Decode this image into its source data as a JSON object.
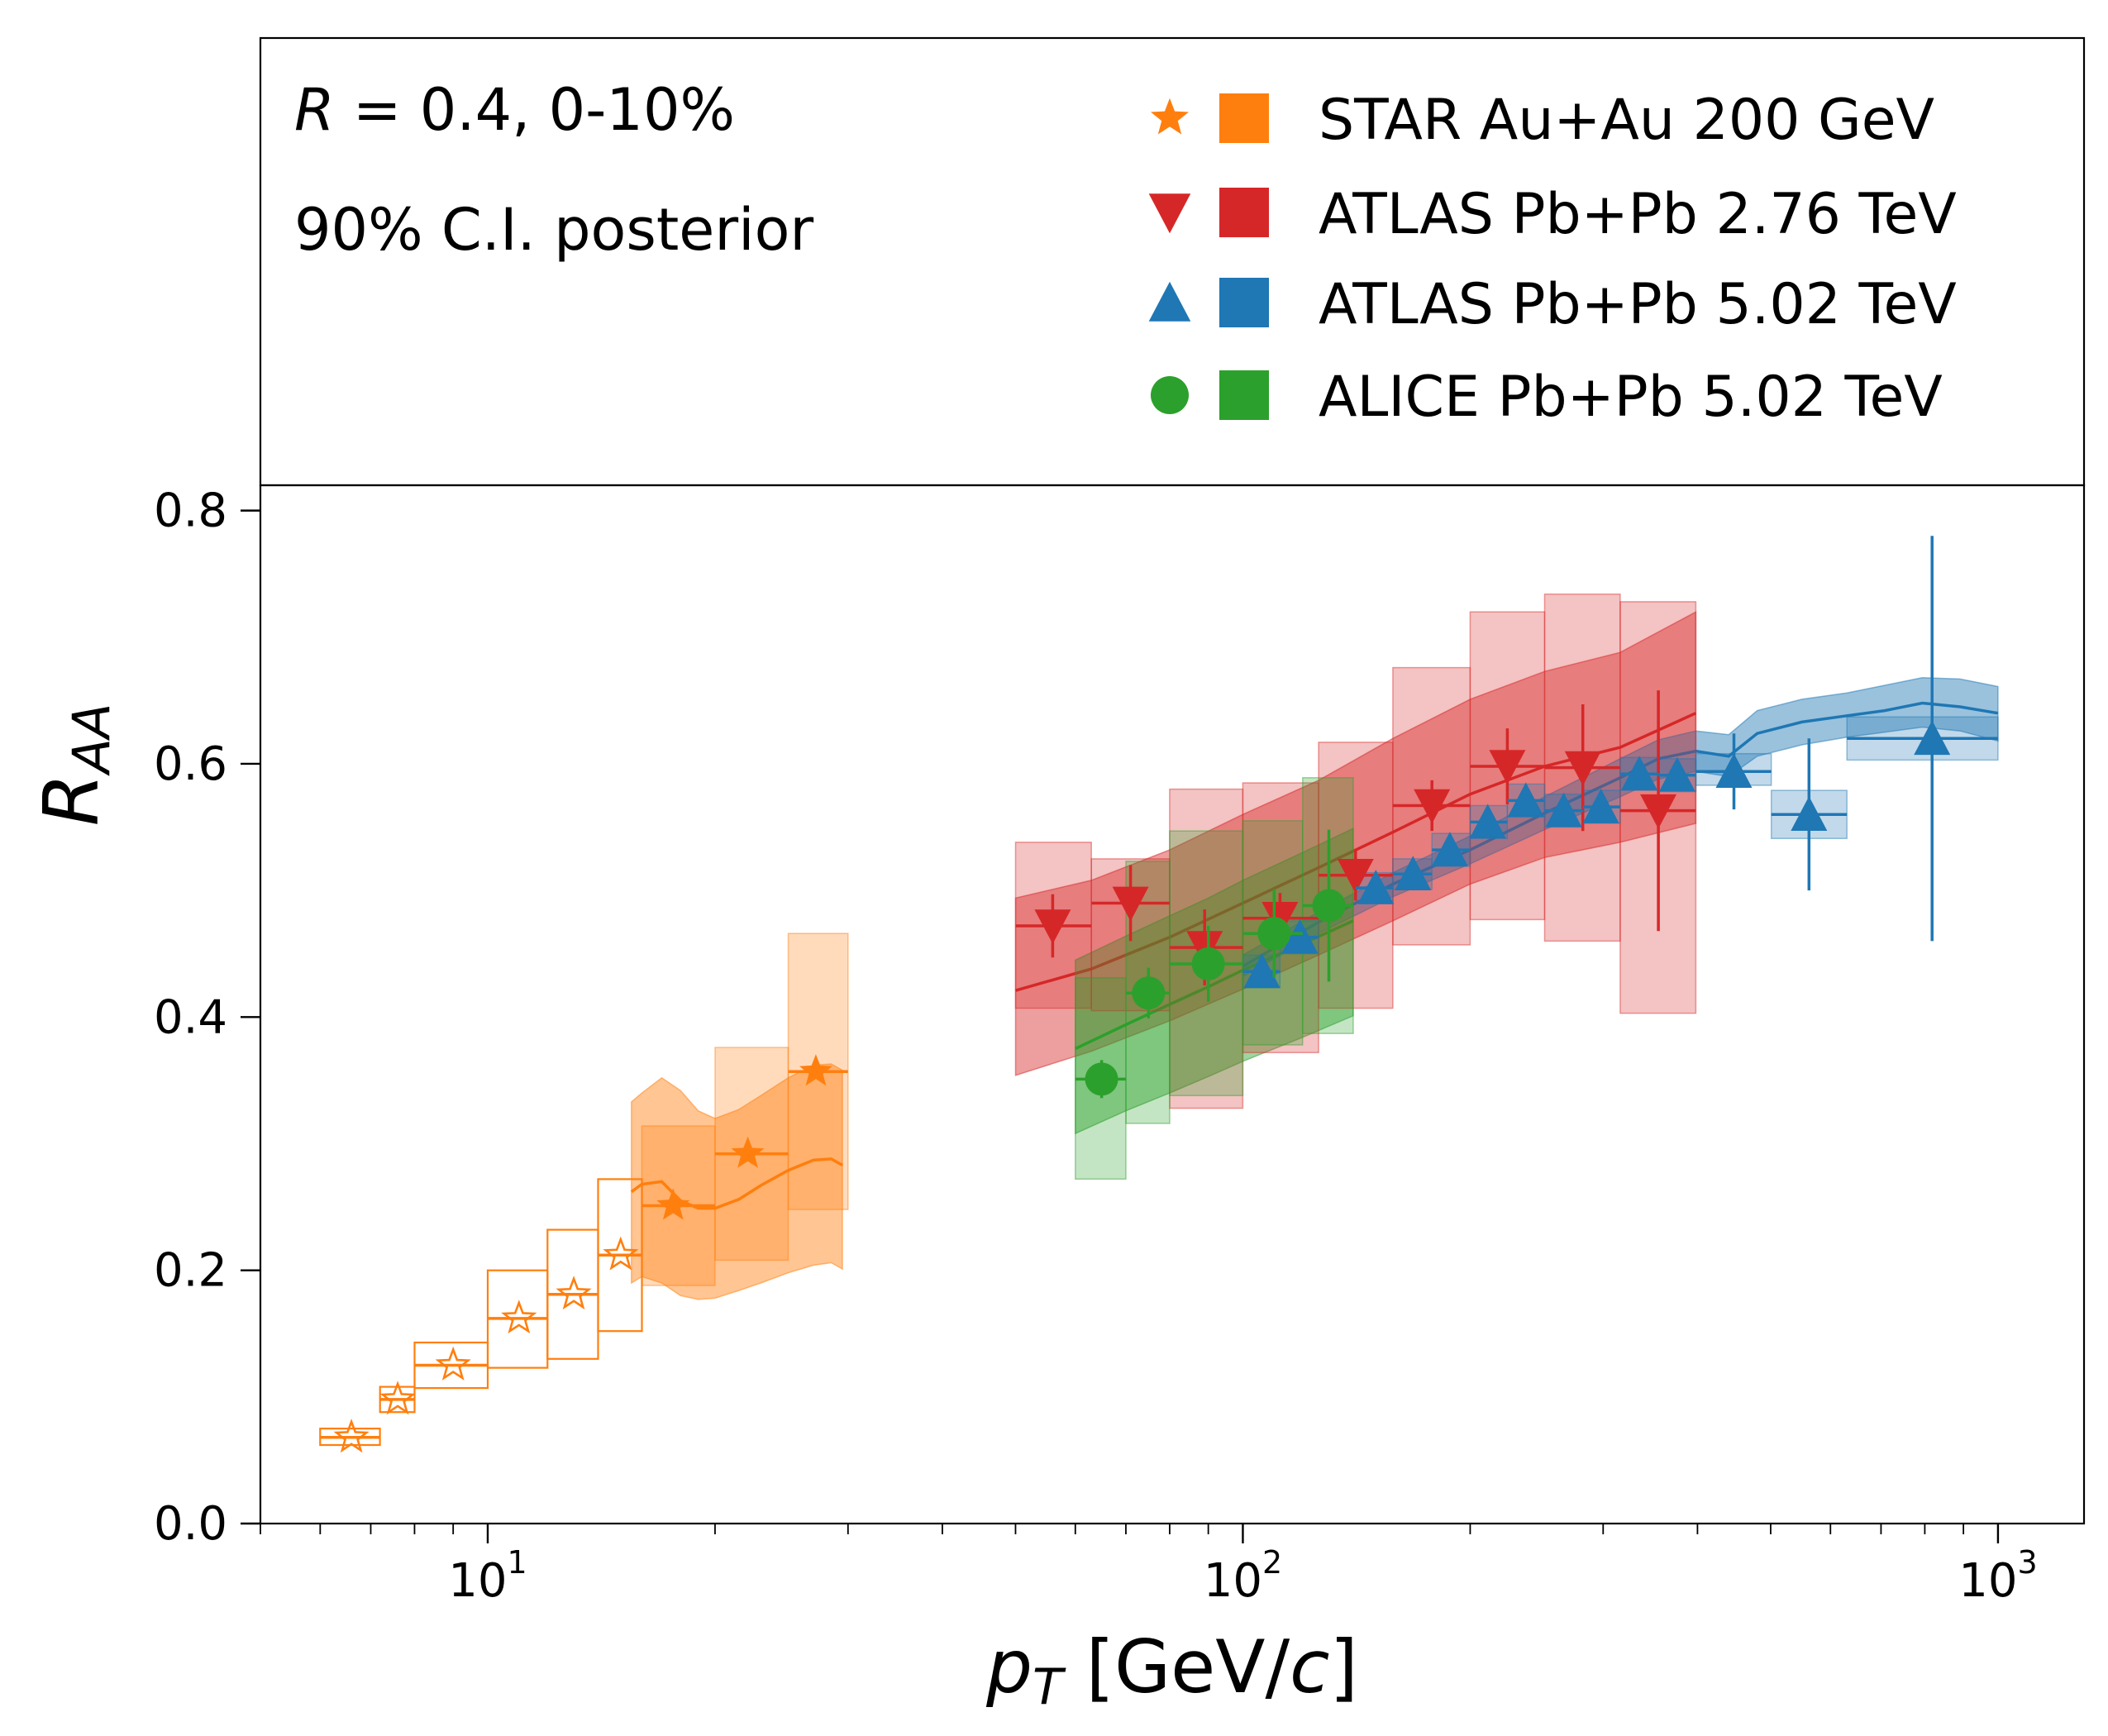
{
  "chart_data": {
    "type": "scatter",
    "title": "",
    "xlabel": "p_T [GeV/c]",
    "xlabel_parts": {
      "main": "p",
      "sub": "T",
      "unit_open": " [GeV/",
      "unit_var": "c",
      "unit_close": "]"
    },
    "ylabel": "R_AA",
    "ylabel_parts": {
      "main": "R",
      "sub": "AA"
    },
    "x_scale": "log",
    "xlim": [
      5,
      1300
    ],
    "ylim": [
      0,
      0.82
    ],
    "y_ticks": [
      {
        "value": 0.0,
        "label": "0.0"
      },
      {
        "value": 0.2,
        "label": "0.2"
      },
      {
        "value": 0.4,
        "label": "0.4"
      },
      {
        "value": 0.6,
        "label": "0.6"
      },
      {
        "value": 0.8,
        "label": "0.8"
      }
    ],
    "x_ticks": [
      {
        "value": 10,
        "base": "10",
        "exp": "1"
      },
      {
        "value": 100,
        "base": "10",
        "exp": "2"
      },
      {
        "value": 1000,
        "base": "10",
        "exp": "3"
      }
    ],
    "annotations": [
      {
        "id": "radius",
        "text_var": "R",
        "text_rest": " = 0.4, 0-10%"
      },
      {
        "id": "ci",
        "text": "90% C.I. posterior"
      }
    ],
    "legend": {
      "position": "top-right",
      "entries": [
        {
          "label": "STAR Au+Au 200 GeV",
          "marker": "star",
          "color": "#ff7f0e"
        },
        {
          "label": "ATLAS Pb+Pb 2.76 TeV",
          "marker": "triangle-down",
          "color": "#d62728"
        },
        {
          "label": "ATLAS Pb+Pb 5.02 TeV",
          "marker": "triangle-up",
          "color": "#1f77b4"
        },
        {
          "label": "ALICE Pb+Pb 5.02 TeV",
          "marker": "circle",
          "color": "#2ca02c"
        }
      ]
    },
    "series": [
      {
        "name": "STAR Au+Au 200 GeV (open)",
        "color": "#ff7f0e",
        "marker": "star-open",
        "sys_style": "outline",
        "points": [
          {
            "x": 6.6,
            "xlo": 6.0,
            "xhi": 7.2,
            "y": 0.068,
            "sys": [
              0.062,
              0.075
            ]
          },
          {
            "x": 7.6,
            "xlo": 7.2,
            "xhi": 8.0,
            "y": 0.098,
            "sys": [
              0.088,
              0.108
            ]
          },
          {
            "x": 9.0,
            "xlo": 8.0,
            "xhi": 10.0,
            "y": 0.125,
            "sys": [
              0.107,
              0.143
            ]
          },
          {
            "x": 11.0,
            "xlo": 10.0,
            "xhi": 12.0,
            "y": 0.162,
            "sys": [
              0.123,
              0.2
            ]
          },
          {
            "x": 13.0,
            "xlo": 12.0,
            "xhi": 14.0,
            "y": 0.181,
            "sys": [
              0.13,
              0.232
            ]
          },
          {
            "x": 15.0,
            "xlo": 14.0,
            "xhi": 16.0,
            "y": 0.212,
            "sys": [
              0.152,
              0.272
            ]
          }
        ]
      },
      {
        "name": "STAR Au+Au 200 GeV (filled)",
        "color": "#ff7f0e",
        "marker": "star",
        "sys_style": "fill",
        "points": [
          {
            "x": 17.6,
            "xlo": 16.0,
            "xhi": 20.0,
            "y": 0.251,
            "sys": [
              0.188,
              0.314
            ]
          },
          {
            "x": 22.1,
            "xlo": 20.0,
            "xhi": 25.0,
            "y": 0.292,
            "sys": [
              0.208,
              0.376
            ]
          },
          {
            "x": 27.2,
            "xlo": 25.0,
            "xhi": 30.0,
            "y": 0.357,
            "sys": [
              0.248,
              0.466
            ]
          }
        ]
      },
      {
        "name": "ATLAS Pb+Pb 2.76 TeV",
        "color": "#d62728",
        "marker": "triangle-down",
        "sys_style": "fill",
        "points": [
          {
            "x": 56,
            "xlo": 50,
            "xhi": 63,
            "y": 0.472,
            "yerr": 0.025,
            "sys": [
              0.407,
              0.538
            ]
          },
          {
            "x": 71,
            "xlo": 63,
            "xhi": 80,
            "y": 0.49,
            "yerr": 0.03,
            "sys": [
              0.405,
              0.525
            ]
          },
          {
            "x": 89,
            "xlo": 80,
            "xhi": 100,
            "y": 0.455,
            "yerr": 0.03,
            "sys": [
              0.328,
              0.58
            ]
          },
          {
            "x": 112,
            "xlo": 100,
            "xhi": 126,
            "y": 0.478,
            "yerr": 0.02,
            "sys": [
              0.372,
              0.585
            ]
          },
          {
            "x": 141,
            "xlo": 126,
            "xhi": 158,
            "y": 0.512,
            "yerr": 0.02,
            "sys": [
              0.407,
              0.617
            ]
          },
          {
            "x": 178,
            "xlo": 158,
            "xhi": 200,
            "y": 0.567,
            "yerr": 0.02,
            "sys": [
              0.457,
              0.676
            ]
          },
          {
            "x": 224,
            "xlo": 200,
            "xhi": 251,
            "y": 0.598,
            "yerr": 0.03,
            "sys": [
              0.477,
              0.72
            ]
          },
          {
            "x": 282,
            "xlo": 251,
            "xhi": 316,
            "y": 0.597,
            "yerr": 0.05,
            "sys": [
              0.46,
              0.734
            ]
          },
          {
            "x": 355,
            "xlo": 316,
            "xhi": 398,
            "y": 0.563,
            "yerr": 0.095,
            "sys": [
              0.403,
              0.728
            ]
          }
        ]
      },
      {
        "name": "ATLAS Pb+Pb 5.02 TeV",
        "color": "#1f77b4",
        "marker": "triangle-up",
        "sys_style": "fill",
        "points": [
          {
            "x": 106,
            "xlo": 100,
            "xhi": 112,
            "y": 0.436,
            "yerr": 0.01,
            "sys": [
              0.423,
              0.449
            ]
          },
          {
            "x": 119,
            "xlo": 112,
            "xhi": 126,
            "y": 0.463,
            "yerr": 0.01,
            "sys": [
              0.45,
              0.476
            ]
          },
          {
            "x": 150,
            "xlo": 141,
            "xhi": 158,
            "y": 0.502,
            "yerr": 0.008,
            "sys": [
              0.49,
              0.514
            ]
          },
          {
            "x": 168,
            "xlo": 158,
            "xhi": 178,
            "y": 0.513,
            "yerr": 0.008,
            "sys": [
              0.501,
              0.525
            ]
          },
          {
            "x": 188,
            "xlo": 178,
            "xhi": 200,
            "y": 0.532,
            "yerr": 0.008,
            "sys": [
              0.519,
              0.545
            ]
          },
          {
            "x": 211,
            "xlo": 200,
            "xhi": 224,
            "y": 0.554,
            "yerr": 0.008,
            "sys": [
              0.541,
              0.567
            ]
          },
          {
            "x": 237,
            "xlo": 224,
            "xhi": 251,
            "y": 0.571,
            "yerr": 0.008,
            "sys": [
              0.558,
              0.584
            ]
          },
          {
            "x": 266,
            "xlo": 251,
            "xhi": 282,
            "y": 0.563,
            "yerr": 0.008,
            "sys": [
              0.55,
              0.576
            ]
          },
          {
            "x": 298,
            "xlo": 282,
            "xhi": 316,
            "y": 0.566,
            "yerr": 0.008,
            "sys": [
              0.553,
              0.579
            ]
          },
          {
            "x": 335,
            "xlo": 316,
            "xhi": 355,
            "y": 0.592,
            "yerr": 0.01,
            "sys": [
              0.579,
              0.605
            ]
          },
          {
            "x": 376,
            "xlo": 355,
            "xhi": 398,
            "y": 0.591,
            "yerr": 0.012,
            "sys": [
              0.578,
              0.604
            ]
          },
          {
            "x": 447,
            "xlo": 398,
            "xhi": 501,
            "y": 0.594,
            "yerr": 0.03,
            "sys": [
              0.583,
              0.608
            ]
          },
          {
            "x": 562,
            "xlo": 501,
            "xhi": 631,
            "y": 0.56,
            "yerr": 0.06,
            "sys": [
              0.541,
              0.579
            ]
          },
          {
            "x": 818,
            "xlo": 631,
            "xhi": 1000,
            "y": 0.62,
            "yerr": 0.16,
            "sys": [
              0.603,
              0.637
            ]
          }
        ]
      },
      {
        "name": "ALICE Pb+Pb 5.02 TeV",
        "color": "#2ca02c",
        "marker": "circle",
        "sys_style": "fill",
        "points": [
          {
            "x": 65,
            "xlo": 60,
            "xhi": 70,
            "y": 0.351,
            "yerr": 0.015,
            "sys": [
              0.272,
              0.431
            ]
          },
          {
            "x": 75,
            "xlo": 70,
            "xhi": 80,
            "y": 0.419,
            "yerr": 0.02,
            "sys": [
              0.316,
              0.523
            ]
          },
          {
            "x": 90,
            "xlo": 80,
            "xhi": 100,
            "y": 0.442,
            "yerr": 0.03,
            "sys": [
              0.338,
              0.547
            ]
          },
          {
            "x": 110,
            "xlo": 100,
            "xhi": 120,
            "y": 0.466,
            "yerr": 0.035,
            "sys": [
              0.378,
              0.555
            ]
          },
          {
            "x": 130,
            "xlo": 120,
            "xhi": 140,
            "y": 0.488,
            "yerr": 0.06,
            "sys": [
              0.387,
              0.589
            ]
          }
        ]
      }
    ],
    "posterior_bands": [
      {
        "name": "STAR posterior",
        "color": "#ff7f0e",
        "points": [
          {
            "x": 15.5,
            "y": 0.262,
            "lo": 0.19,
            "hi": 0.333
          },
          {
            "x": 16.0,
            "y": 0.268,
            "lo": 0.195,
            "hi": 0.34
          },
          {
            "x": 17.0,
            "y": 0.27,
            "lo": 0.19,
            "hi": 0.352
          },
          {
            "x": 18.0,
            "y": 0.255,
            "lo": 0.18,
            "hi": 0.342
          },
          {
            "x": 19.0,
            "y": 0.249,
            "lo": 0.177,
            "hi": 0.326
          },
          {
            "x": 20.0,
            "y": 0.249,
            "lo": 0.178,
            "hi": 0.32
          },
          {
            "x": 21.5,
            "y": 0.256,
            "lo": 0.184,
            "hi": 0.327
          },
          {
            "x": 23.0,
            "y": 0.267,
            "lo": 0.19,
            "hi": 0.338
          },
          {
            "x": 25.0,
            "y": 0.279,
            "lo": 0.198,
            "hi": 0.352
          },
          {
            "x": 27.0,
            "y": 0.287,
            "lo": 0.204,
            "hi": 0.362
          },
          {
            "x": 28.5,
            "y": 0.288,
            "lo": 0.206,
            "hi": 0.363
          },
          {
            "x": 29.5,
            "y": 0.283,
            "lo": 0.201,
            "hi": 0.358
          }
        ]
      },
      {
        "name": "ATLAS 2.76 TeV posterior",
        "color": "#d62728",
        "points": [
          {
            "x": 50,
            "y": 0.421,
            "lo": 0.354,
            "hi": 0.494
          },
          {
            "x": 63,
            "y": 0.438,
            "lo": 0.373,
            "hi": 0.508
          },
          {
            "x": 80,
            "y": 0.463,
            "lo": 0.397,
            "hi": 0.532
          },
          {
            "x": 100,
            "y": 0.49,
            "lo": 0.422,
            "hi": 0.56
          },
          {
            "x": 126,
            "y": 0.518,
            "lo": 0.449,
            "hi": 0.587
          },
          {
            "x": 158,
            "y": 0.546,
            "lo": 0.476,
            "hi": 0.62
          },
          {
            "x": 200,
            "y": 0.576,
            "lo": 0.505,
            "hi": 0.651
          },
          {
            "x": 251,
            "y": 0.598,
            "lo": 0.526,
            "hi": 0.673
          },
          {
            "x": 316,
            "y": 0.613,
            "lo": 0.538,
            "hi": 0.688
          },
          {
            "x": 398,
            "y": 0.64,
            "lo": 0.553,
            "hi": 0.72
          }
        ]
      },
      {
        "name": "ATLAS 5.02 TeV posterior",
        "color": "#1f77b4",
        "points": [
          {
            "x": 100,
            "y": 0.44,
            "lo": 0.432,
            "hi": 0.449
          },
          {
            "x": 126,
            "y": 0.475,
            "lo": 0.466,
            "hi": 0.483
          },
          {
            "x": 158,
            "y": 0.505,
            "lo": 0.495,
            "hi": 0.514
          },
          {
            "x": 200,
            "y": 0.532,
            "lo": 0.521,
            "hi": 0.543
          },
          {
            "x": 251,
            "y": 0.561,
            "lo": 0.548,
            "hi": 0.574
          },
          {
            "x": 316,
            "y": 0.589,
            "lo": 0.574,
            "hi": 0.604
          },
          {
            "x": 355,
            "y": 0.604,
            "lo": 0.588,
            "hi": 0.619
          },
          {
            "x": 398,
            "y": 0.61,
            "lo": 0.594,
            "hi": 0.626
          },
          {
            "x": 440,
            "y": 0.606,
            "lo": 0.59,
            "hi": 0.623
          },
          {
            "x": 480,
            "y": 0.624,
            "lo": 0.606,
            "hi": 0.642
          },
          {
            "x": 550,
            "y": 0.633,
            "lo": 0.615,
            "hi": 0.651
          },
          {
            "x": 631,
            "y": 0.638,
            "lo": 0.621,
            "hi": 0.656
          },
          {
            "x": 708,
            "y": 0.642,
            "lo": 0.625,
            "hi": 0.662
          },
          {
            "x": 794,
            "y": 0.648,
            "lo": 0.629,
            "hi": 0.668
          },
          {
            "x": 891,
            "y": 0.645,
            "lo": 0.626,
            "hi": 0.667
          },
          {
            "x": 1000,
            "y": 0.64,
            "lo": 0.618,
            "hi": 0.661
          }
        ]
      },
      {
        "name": "ALICE posterior",
        "color": "#2ca02c",
        "points": [
          {
            "x": 60,
            "y": 0.375,
            "lo": 0.308,
            "hi": 0.445
          },
          {
            "x": 70,
            "y": 0.394,
            "lo": 0.326,
            "hi": 0.464
          },
          {
            "x": 80,
            "y": 0.41,
            "lo": 0.34,
            "hi": 0.48
          },
          {
            "x": 90,
            "y": 0.424,
            "lo": 0.353,
            "hi": 0.494
          },
          {
            "x": 100,
            "y": 0.437,
            "lo": 0.365,
            "hi": 0.508
          },
          {
            "x": 120,
            "y": 0.458,
            "lo": 0.384,
            "hi": 0.53
          },
          {
            "x": 140,
            "y": 0.476,
            "lo": 0.401,
            "hi": 0.549
          }
        ]
      }
    ]
  }
}
